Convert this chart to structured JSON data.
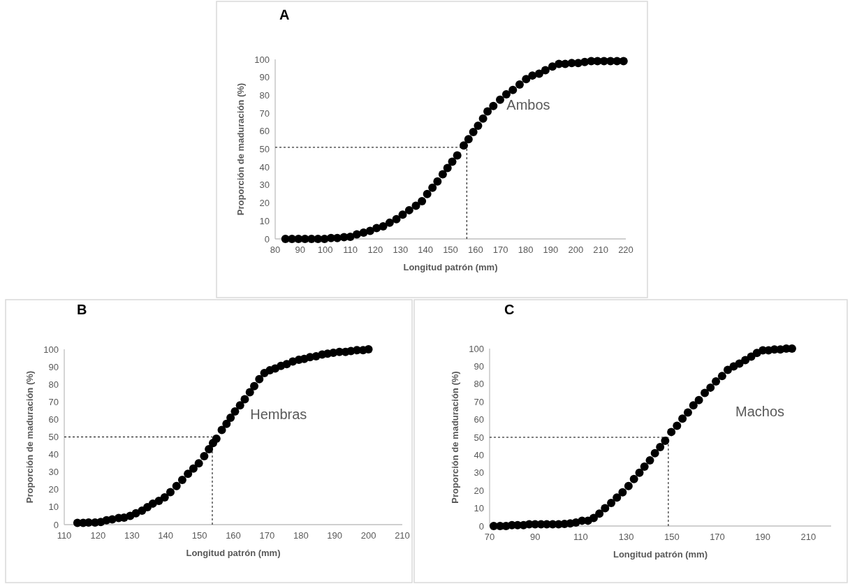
{
  "chart_data": [
    {
      "type": "scatter",
      "title": "A",
      "xlabel": "Longitud patrón (mm)",
      "ylabel": "Proporción de maduración (%)",
      "xlim": [
        80,
        220
      ],
      "xticks": [
        80,
        90,
        100,
        110,
        120,
        130,
        140,
        150,
        160,
        170,
        180,
        190,
        200,
        210,
        220
      ],
      "ylim": [
        0,
        100
      ],
      "yticks": [
        0,
        10,
        20,
        30,
        40,
        50,
        60,
        70,
        80,
        90,
        100
      ],
      "grid": false,
      "marker": "circle",
      "ref_lines": [
        {
          "axis": "y",
          "value": 51,
          "color": "#000000",
          "line_style": "dashed"
        },
        {
          "axis": "x",
          "value": 156.5,
          "color": "#000000",
          "line_style": "dashed"
        }
      ],
      "series": [
        {
          "name": "Ambos",
          "color": "#000000",
          "x": [
            84.1,
            86.7,
            89.3,
            91.9,
            94.5,
            97.1,
            99.7,
            102.3,
            104.8,
            107.5,
            110,
            112.6,
            115.3,
            117.9,
            120.5,
            123.1,
            125.7,
            128.4,
            130.9,
            133.5,
            136.2,
            138.6,
            140.7,
            142.8,
            144.8,
            146.9,
            148.8,
            150.7,
            152.7,
            155.3,
            157.2,
            159.1,
            161,
            163,
            164.8,
            167.1,
            169.8,
            172.3,
            174.9,
            177.6,
            180.2,
            182.7,
            185.4,
            187.9,
            190.7,
            193.3,
            195.8,
            198.4,
            201,
            203.6,
            206.2,
            208.7,
            211.3,
            213.9,
            216.5,
            219.1
          ],
          "values": [
            0,
            0,
            0,
            0,
            0,
            0,
            0,
            0.5,
            0.5,
            1,
            1.2,
            2.5,
            3.5,
            4.5,
            6,
            7,
            9,
            11,
            13.5,
            16,
            18.5,
            21,
            25,
            28.5,
            32,
            36,
            39.5,
            43,
            46.5,
            52,
            55.5,
            59.5,
            63,
            67,
            71,
            74,
            77.5,
            80.5,
            83,
            86,
            89,
            91,
            92,
            94,
            96,
            97.5,
            97.5,
            98,
            98,
            98.5,
            99,
            99,
            99,
            99,
            99,
            99
          ]
        }
      ]
    },
    {
      "type": "scatter",
      "title": "B",
      "xlabel": "Longitud patrón (mm)",
      "ylabel": "Proporción de maduración (%)",
      "xlim": [
        110,
        210
      ],
      "xticks": [
        110,
        120,
        130,
        140,
        150,
        160,
        170,
        180,
        190,
        200,
        210
      ],
      "ylim": [
        0,
        100
      ],
      "yticks": [
        0,
        10,
        20,
        30,
        40,
        50,
        60,
        70,
        80,
        90,
        100
      ],
      "grid": false,
      "marker": "circle",
      "ref_lines": [
        {
          "axis": "y",
          "value": 50,
          "color": "#000000",
          "line_style": "dashed"
        },
        {
          "axis": "x",
          "value": 153.8,
          "color": "#000000",
          "line_style": "dashed"
        }
      ],
      "series": [
        {
          "name": "Hembras",
          "color": "#000000",
          "x": [
            113.9,
            115.6,
            117.2,
            119.1,
            120.8,
            122.5,
            124.2,
            126.1,
            127.7,
            129.5,
            131.2,
            133,
            134.6,
            136.2,
            138,
            139.7,
            141.4,
            143.2,
            144.9,
            146.6,
            148.2,
            149.8,
            151.4,
            152.8,
            154,
            155,
            156.6,
            158,
            159.2,
            160.5,
            162,
            163.4,
            164.9,
            166.2,
            167.7,
            169.2,
            170.8,
            172.4,
            174.1,
            175.8,
            177.6,
            179.4,
            181,
            182.7,
            184.5,
            186.3,
            187.9,
            189.6,
            191.4,
            193.2,
            194.8,
            196.6,
            198.4,
            200
          ],
          "values": [
            1,
            1,
            1.2,
            1.2,
            1.5,
            2.5,
            3,
            3.8,
            4,
            5,
            6.5,
            8,
            10,
            12,
            13.5,
            15.5,
            18.5,
            22,
            25.5,
            29,
            32,
            35,
            39,
            43,
            46.5,
            49,
            54,
            57.5,
            61,
            64.5,
            68,
            71.5,
            75.5,
            79,
            83,
            86.5,
            88,
            89,
            90.5,
            91.5,
            93,
            94,
            94.5,
            95.5,
            96,
            97,
            97.5,
            98,
            98.5,
            98.5,
            99,
            99.5,
            99.5,
            100
          ]
        }
      ]
    },
    {
      "type": "scatter",
      "title": "C",
      "xlabel": "Longitud patrón (mm)",
      "ylabel": "Proporción de maduración (%)",
      "xlim": [
        70,
        220
      ],
      "xticks": [
        70,
        90,
        110,
        130,
        150,
        170,
        190,
        210
      ],
      "ylim": [
        0,
        100
      ],
      "yticks": [
        0,
        10,
        20,
        30,
        40,
        50,
        60,
        70,
        80,
        90,
        100
      ],
      "grid": false,
      "marker": "circle",
      "ref_lines": [
        {
          "axis": "y",
          "value": 50,
          "color": "#000000",
          "line_style": "dashed"
        },
        {
          "axis": "x",
          "value": 148.5,
          "color": "#000000",
          "line_style": "dashed"
        }
      ],
      "series": [
        {
          "name": "Machos",
          "color": "#000000",
          "x": [
            71.8,
            74.6,
            77.2,
            79.8,
            82.3,
            84.9,
            87.4,
            90,
            92.6,
            95.1,
            97.7,
            100.3,
            102.9,
            105.4,
            107.9,
            110.6,
            113.2,
            115.7,
            118.2,
            120.7,
            123.4,
            125.9,
            128.4,
            131,
            133.4,
            135.8,
            138,
            140.4,
            142.6,
            144.9,
            147.1,
            149.8,
            152.3,
            154.7,
            157.1,
            159.5,
            161.9,
            164.5,
            167,
            169.4,
            172.1,
            174.6,
            177.2,
            179.7,
            182.3,
            184.9,
            187.4,
            190,
            192.5,
            195.1,
            197.7,
            200.3,
            202.8
          ],
          "values": [
            0,
            0,
            0,
            0.5,
            0.5,
            0.5,
            1,
            1,
            1,
            1,
            1,
            1,
            1.2,
            1.5,
            2,
            3,
            3,
            4.5,
            7,
            10,
            13,
            16,
            19,
            22.5,
            26.5,
            30,
            33.5,
            37,
            41,
            44.5,
            48,
            53,
            56.5,
            60.5,
            64,
            68,
            71,
            75,
            78,
            81.5,
            84.5,
            88,
            90,
            91.5,
            93.5,
            95.5,
            97.5,
            99,
            99,
            99.5,
            99.5,
            100,
            100
          ]
        }
      ]
    }
  ]
}
